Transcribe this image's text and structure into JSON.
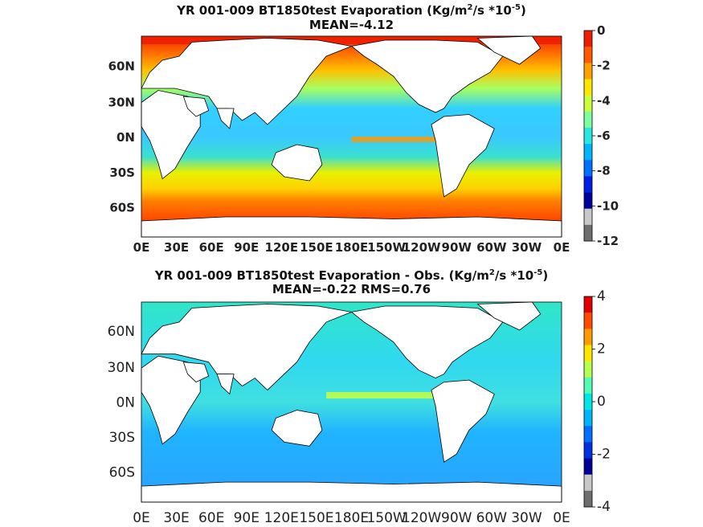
{
  "panels": [
    {
      "title_line1": "YR 001-009 BT1850test  Evaporation (Kg/m",
      "title_sup1": "2",
      "title_mid": "/s *10",
      "title_sup2": "-5",
      "title_end": ")",
      "title_line2": "MEAN=-4.12",
      "y_ticks": [
        "60N",
        "30N",
        "0N",
        "30S",
        "60S"
      ],
      "x_ticks": [
        "0E",
        "30E",
        "60E",
        "90E",
        "120E",
        "150E",
        "180E",
        "150W",
        "120W",
        "90W",
        "60W",
        "30W",
        "0E"
      ],
      "colorbar_ticks": [
        "0",
        "-2",
        "-4",
        "-6",
        "-8",
        "-10",
        "-12"
      ],
      "colorbar_colors": [
        "#ee1c00",
        "#ff5a00",
        "#ffa000",
        "#ffe600",
        "#c8ff3a",
        "#7dffa0",
        "#2ae6e0",
        "#00b4ff",
        "#0070ff",
        "#0020e6",
        "#00009c",
        "#c8c8c8",
        "#6e6e6e"
      ],
      "tick_weight": "bold"
    },
    {
      "title_line1": "YR 001-009 BT1850test Evaporation - Obs. (Kg/m",
      "title_sup1": "2",
      "title_mid": "/s *10",
      "title_sup2": "-5",
      "title_end": ")",
      "title_line2": "MEAN=-0.22   RMS=0.76",
      "y_ticks": [
        "60N",
        "30N",
        "0N",
        "30S",
        "60S"
      ],
      "x_ticks": [
        "0E",
        "30E",
        "60E",
        "90E",
        "120E",
        "150E",
        "180E",
        "150W",
        "120W",
        "90W",
        "60W",
        "30W",
        "0E"
      ],
      "colorbar_ticks": [
        "4",
        "2",
        "0",
        "-2",
        "-4"
      ],
      "colorbar_colors": [
        "#e00000",
        "#ff4a00",
        "#ff9a00",
        "#ffe600",
        "#b4ff50",
        "#50ffb4",
        "#00e6e6",
        "#00b4ff",
        "#0070ff",
        "#0030e0",
        "#000096",
        "#c8c8c8",
        "#6e6e6e"
      ],
      "tick_weight": "normal"
    }
  ]
}
